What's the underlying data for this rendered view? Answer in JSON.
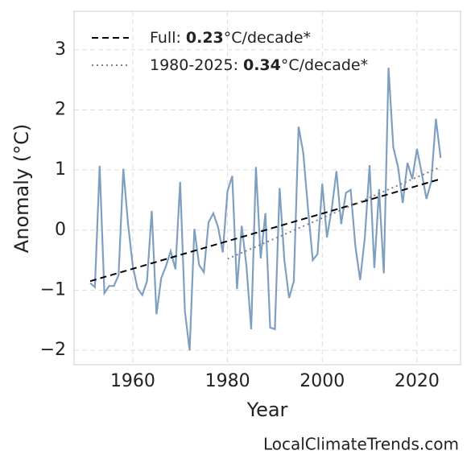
{
  "chart_data": {
    "type": "line",
    "x_label": "Year",
    "y_label": "Anomaly (°C)",
    "source": "LocalClimateTrends.com",
    "x": [
      1951,
      1952,
      1953,
      1954,
      1955,
      1956,
      1957,
      1958,
      1959,
      1960,
      1961,
      1962,
      1963,
      1964,
      1965,
      1966,
      1967,
      1968,
      1969,
      1970,
      1971,
      1972,
      1973,
      1974,
      1975,
      1976,
      1977,
      1978,
      1979,
      1980,
      1981,
      1982,
      1983,
      1984,
      1985,
      1986,
      1987,
      1988,
      1989,
      1990,
      1991,
      1992,
      1993,
      1994,
      1995,
      1996,
      1997,
      1998,
      1999,
      2000,
      2001,
      2002,
      2003,
      2004,
      2005,
      2006,
      2007,
      2008,
      2009,
      2010,
      2011,
      2012,
      2013,
      2014,
      2015,
      2016,
      2017,
      2018,
      2019,
      2020,
      2021,
      2022,
      2023,
      2024,
      2025
    ],
    "values": [
      -0.88,
      -0.95,
      1.07,
      -1.05,
      -0.93,
      -0.93,
      -0.75,
      1.02,
      0.1,
      -0.6,
      -0.97,
      -1.08,
      -0.85,
      0.32,
      -1.4,
      -0.8,
      -0.6,
      -0.35,
      -0.65,
      0.8,
      -1.35,
      -2.0,
      0.02,
      -0.58,
      -0.7,
      0.13,
      0.28,
      0.05,
      -0.37,
      0.65,
      0.9,
      -0.98,
      0.07,
      -0.6,
      -1.65,
      1.05,
      -0.47,
      0.28,
      -1.62,
      -1.65,
      0.7,
      -0.5,
      -1.13,
      -0.85,
      1.72,
      1.28,
      0.35,
      -0.5,
      -0.4,
      0.77,
      -0.12,
      0.35,
      0.98,
      0.1,
      0.62,
      0.67,
      -0.27,
      -0.83,
      -0.12,
      1.08,
      -0.63,
      0.68,
      -0.72,
      2.7,
      1.38,
      1.05,
      0.45,
      1.12,
      0.85,
      1.35,
      0.95,
      0.52,
      0.8,
      1.85,
      1.2
    ],
    "color": "#7f9fc0",
    "trends": [
      {
        "name": "Full:",
        "trend": 0.23,
        "unit": "°C/decade*",
        "x": [
          1951,
          2025
        ],
        "values": [
          -0.85,
          0.85
        ],
        "color": "#000000",
        "dash": "dashed"
      },
      {
        "name": "1980-2025:",
        "trend": 0.34,
        "unit": "°C/decade*",
        "x": [
          1980,
          2025
        ],
        "values": [
          -0.48,
          1.05
        ],
        "color": "#808080",
        "dash": "dotted"
      }
    ],
    "xlim": [
      1947.6,
      2029.2
    ],
    "ylim": [
      -2.24,
      3.64
    ],
    "xticks": [
      1960,
      1980,
      2000,
      2020
    ],
    "yticks": [
      {
        "value": -2,
        "label": "−2"
      },
      {
        "value": -1,
        "label": "−1"
      },
      0,
      1,
      2,
      3
    ],
    "grid": true,
    "legend": "upper left"
  }
}
